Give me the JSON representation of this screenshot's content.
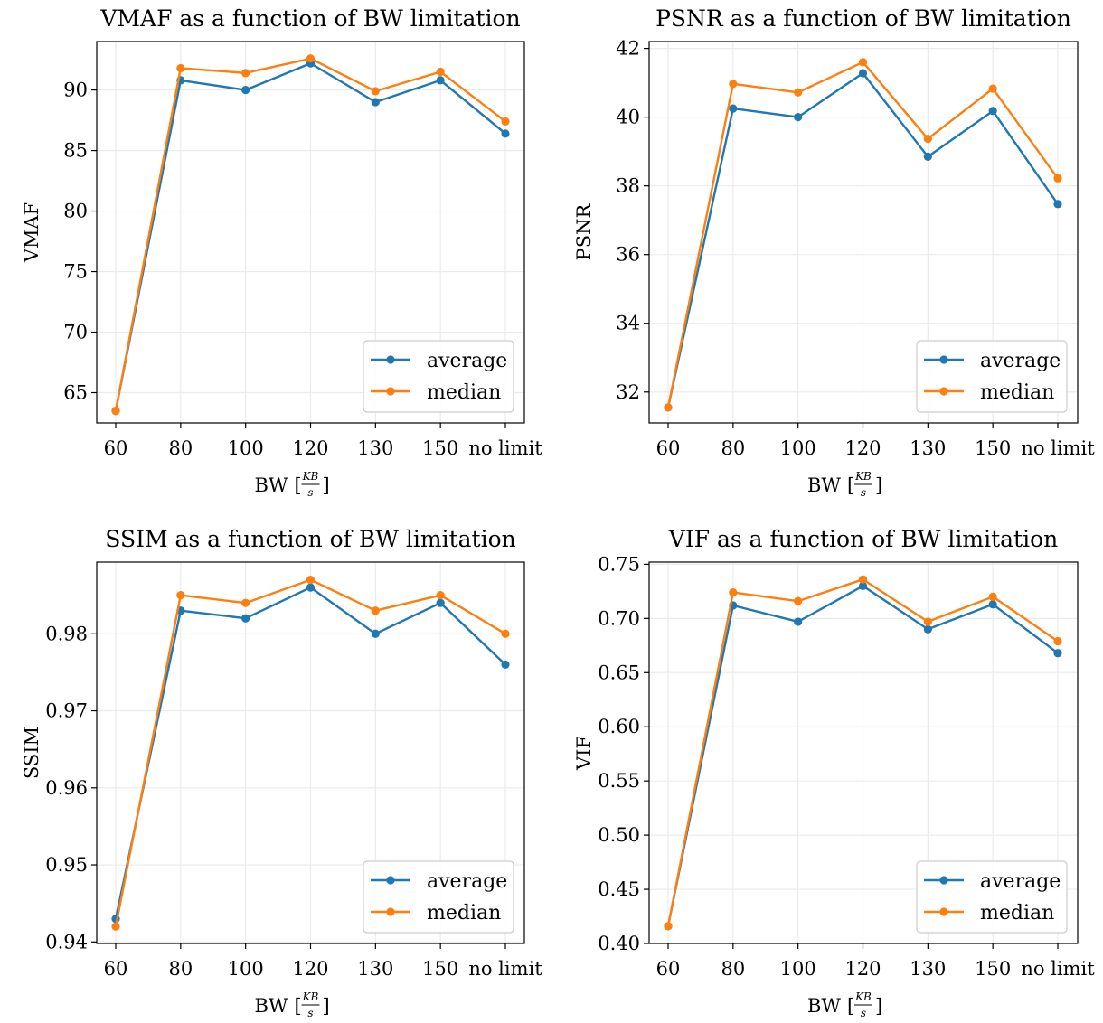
{
  "colors": {
    "average": "#1f77b4",
    "median": "#ff7f0e",
    "grid": "#ebebeb"
  },
  "chart_data": [
    {
      "type": "line",
      "title": "VMAF as a function of BW limitation",
      "xlabel": "BW",
      "xunit": {
        "num": "KB",
        "den": "s"
      },
      "ylabel": "VMAF",
      "categories": [
        "60",
        "80",
        "100",
        "120",
        "130",
        "150",
        "no limit"
      ],
      "yticks": [
        "65",
        "70",
        "75",
        "80",
        "85",
        "90"
      ],
      "ylim": [
        62.5,
        94
      ],
      "grid": true,
      "legend_position": "lower-right",
      "series": [
        {
          "name": "average",
          "values": [
            63.5,
            90.8,
            90.0,
            92.2,
            89.0,
            90.8,
            86.4
          ]
        },
        {
          "name": "median",
          "values": [
            63.5,
            91.8,
            91.4,
            92.6,
            89.9,
            91.5,
            87.4
          ]
        }
      ]
    },
    {
      "type": "line",
      "title": "PSNR as a function of BW limitation",
      "xlabel": "BW",
      "xunit": {
        "num": "KB",
        "den": "s"
      },
      "ylabel": "PSNR",
      "categories": [
        "60",
        "80",
        "100",
        "120",
        "130",
        "150",
        "no limit"
      ],
      "yticks": [
        "32",
        "34",
        "36",
        "38",
        "40",
        "42"
      ],
      "ylim": [
        31.1,
        42.2
      ],
      "grid": true,
      "legend_position": "lower-right",
      "series": [
        {
          "name": "average",
          "values": [
            31.55,
            40.25,
            40.0,
            41.28,
            38.85,
            40.18,
            37.47
          ]
        },
        {
          "name": "median",
          "values": [
            31.55,
            40.97,
            40.72,
            41.6,
            39.37,
            40.83,
            38.22
          ]
        }
      ]
    },
    {
      "type": "line",
      "title": "SSIM as a function of BW limitation",
      "xlabel": "BW",
      "xunit": {
        "num": "KB",
        "den": "s"
      },
      "ylabel": "SSIM",
      "categories": [
        "60",
        "80",
        "100",
        "120",
        "130",
        "150",
        "no limit"
      ],
      "yticks": [
        "0.94",
        "0.95",
        "0.96",
        "0.97",
        "0.98"
      ],
      "ylim": [
        0.9398,
        0.9893
      ],
      "grid": true,
      "legend_position": "lower-right",
      "series": [
        {
          "name": "average",
          "values": [
            0.943,
            0.983,
            0.982,
            0.986,
            0.98,
            0.984,
            0.976
          ]
        },
        {
          "name": "median",
          "values": [
            0.942,
            0.985,
            0.984,
            0.987,
            0.983,
            0.985,
            0.98
          ]
        }
      ]
    },
    {
      "type": "line",
      "title": "VIF as a function of BW limitation",
      "xlabel": "BW",
      "xunit": {
        "num": "KB",
        "den": "s"
      },
      "ylabel": "VIF",
      "categories": [
        "60",
        "80",
        "100",
        "120",
        "130",
        "150",
        "no limit"
      ],
      "yticks": [
        "0.40",
        "0.45",
        "0.50",
        "0.55",
        "0.60",
        "0.65",
        "0.70",
        "0.75"
      ],
      "ylim": [
        0.4,
        0.752
      ],
      "grid": true,
      "legend_position": "lower-right",
      "series": [
        {
          "name": "average",
          "values": [
            0.416,
            0.712,
            0.697,
            0.73,
            0.69,
            0.713,
            0.668
          ]
        },
        {
          "name": "median",
          "values": [
            0.416,
            0.724,
            0.716,
            0.736,
            0.697,
            0.72,
            0.679
          ]
        }
      ]
    }
  ]
}
